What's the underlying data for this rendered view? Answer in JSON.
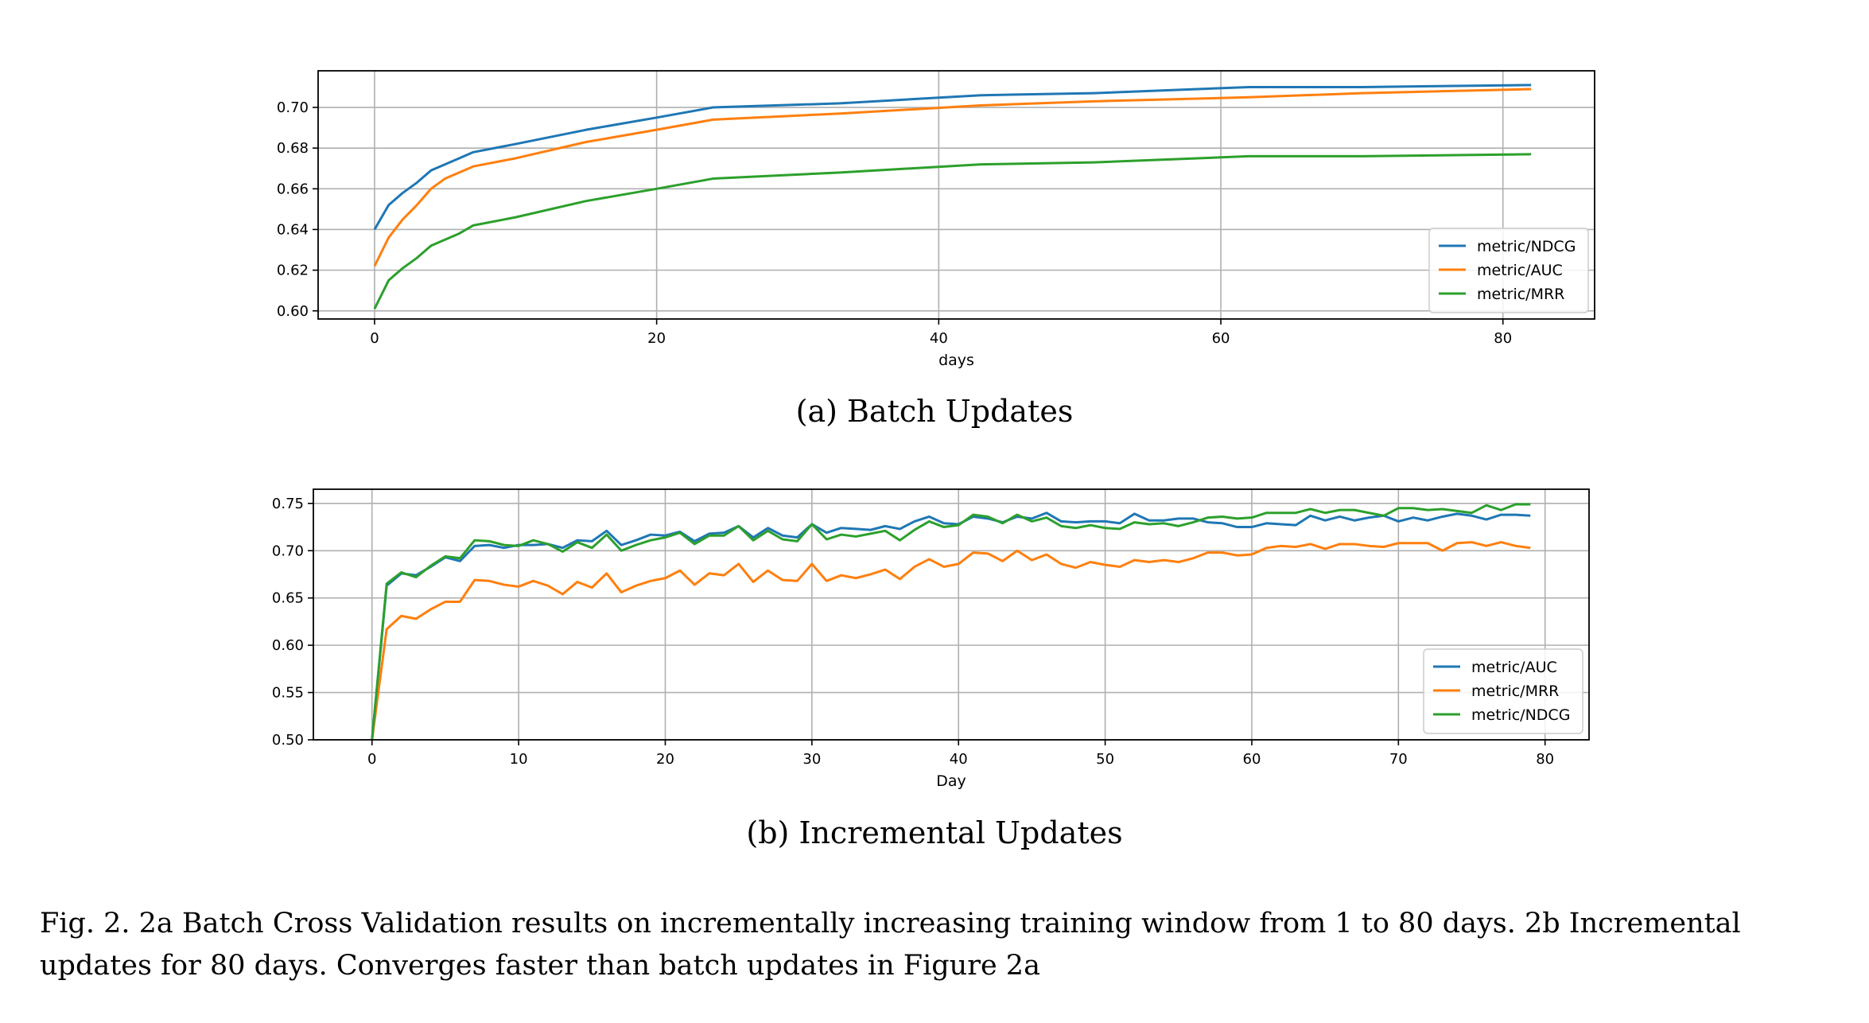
{
  "chart_data": [
    {
      "type": "line",
      "caption": "(a) Batch Updates",
      "xlabel": "days",
      "ylabel": "",
      "xlim": [
        -4,
        86.5
      ],
      "ylim": [
        0.596,
        0.718
      ],
      "xticks": [
        0,
        20,
        40,
        60,
        80
      ],
      "yticks": [
        0.6,
        0.62,
        0.64,
        0.66,
        0.68,
        0.7
      ],
      "ytick_labels": [
        "0.60",
        "0.62",
        "0.64",
        "0.66",
        "0.68",
        "0.70"
      ],
      "grid": true,
      "legend_position": "lower right",
      "x": [
        0,
        1,
        2,
        3,
        4,
        5,
        6,
        7,
        10,
        15,
        20,
        24,
        33,
        43,
        51,
        62,
        70,
        82
      ],
      "series": [
        {
          "name": "metric/NDCG",
          "color": "#1f77b4",
          "values": [
            0.64,
            0.652,
            0.658,
            0.663,
            0.669,
            0.672,
            0.675,
            0.678,
            0.682,
            0.689,
            0.695,
            0.7,
            0.702,
            0.706,
            0.707,
            0.71,
            0.71,
            0.711
          ]
        },
        {
          "name": "metric/AUC",
          "color": "#ff7f0e",
          "values": [
            0.622,
            0.636,
            0.645,
            0.652,
            0.66,
            0.665,
            0.668,
            0.671,
            0.675,
            0.683,
            0.689,
            0.694,
            0.697,
            0.701,
            0.703,
            0.705,
            0.707,
            0.709
          ]
        },
        {
          "name": "metric/MRR",
          "color": "#2ca02c",
          "values": [
            0.601,
            0.615,
            0.621,
            0.626,
            0.632,
            0.635,
            0.638,
            0.642,
            0.646,
            0.654,
            0.66,
            0.665,
            0.668,
            0.672,
            0.673,
            0.676,
            0.676,
            0.677
          ]
        }
      ]
    },
    {
      "type": "line",
      "caption": "(b) Incremental Updates",
      "xlabel": "Day",
      "ylabel": "",
      "xlim": [
        -4,
        83
      ],
      "ylim": [
        0.5,
        0.765
      ],
      "xticks": [
        0,
        10,
        20,
        30,
        40,
        50,
        60,
        70,
        80
      ],
      "yticks": [
        0.5,
        0.55,
        0.6,
        0.65,
        0.7,
        0.75
      ],
      "ytick_labels": [
        "0.50",
        "0.55",
        "0.60",
        "0.65",
        "0.70",
        "0.75"
      ],
      "grid": true,
      "legend_position": "lower right",
      "x": [
        0,
        1,
        2,
        3,
        4,
        5,
        6,
        7,
        8,
        9,
        10,
        11,
        12,
        13,
        14,
        15,
        16,
        17,
        18,
        19,
        20,
        21,
        22,
        23,
        24,
        25,
        26,
        27,
        28,
        29,
        30,
        31,
        32,
        33,
        34,
        35,
        36,
        37,
        38,
        39,
        40,
        41,
        42,
        43,
        44,
        45,
        46,
        47,
        48,
        49,
        50,
        51,
        52,
        53,
        54,
        55,
        56,
        57,
        58,
        59,
        60,
        61,
        62,
        63,
        64,
        65,
        66,
        67,
        68,
        69,
        70,
        71,
        72,
        73,
        74,
        75,
        76,
        77,
        78,
        79
      ],
      "series": [
        {
          "name": "metric/AUC",
          "color": "#1f77b4",
          "values": [
            0.5,
            0.663,
            0.676,
            0.674,
            0.683,
            0.693,
            0.689,
            0.705,
            0.706,
            0.703,
            0.706,
            0.706,
            0.707,
            0.703,
            0.711,
            0.71,
            0.721,
            0.706,
            0.711,
            0.717,
            0.716,
            0.72,
            0.71,
            0.718,
            0.719,
            0.726,
            0.714,
            0.724,
            0.716,
            0.714,
            0.728,
            0.719,
            0.724,
            0.723,
            0.722,
            0.726,
            0.723,
            0.731,
            0.736,
            0.729,
            0.728,
            0.736,
            0.734,
            0.73,
            0.736,
            0.734,
            0.74,
            0.731,
            0.73,
            0.731,
            0.731,
            0.729,
            0.739,
            0.732,
            0.732,
            0.734,
            0.734,
            0.73,
            0.729,
            0.725,
            0.725,
            0.729,
            0.728,
            0.727,
            0.737,
            0.732,
            0.736,
            0.732,
            0.735,
            0.737,
            0.731,
            0.735,
            0.732,
            0.736,
            0.739,
            0.737,
            0.733,
            0.738,
            0.738,
            0.737
          ]
        },
        {
          "name": "metric/MRR",
          "color": "#ff7f0e",
          "values": [
            0.5,
            0.617,
            0.631,
            0.628,
            0.638,
            0.646,
            0.646,
            0.669,
            0.668,
            0.664,
            0.662,
            0.668,
            0.663,
            0.654,
            0.667,
            0.661,
            0.676,
            0.656,
            0.663,
            0.668,
            0.671,
            0.679,
            0.664,
            0.676,
            0.674,
            0.686,
            0.667,
            0.679,
            0.669,
            0.668,
            0.686,
            0.668,
            0.674,
            0.671,
            0.675,
            0.68,
            0.67,
            0.683,
            0.691,
            0.683,
            0.686,
            0.698,
            0.697,
            0.689,
            0.7,
            0.69,
            0.696,
            0.686,
            0.682,
            0.688,
            0.685,
            0.683,
            0.69,
            0.688,
            0.69,
            0.688,
            0.692,
            0.698,
            0.698,
            0.695,
            0.696,
            0.703,
            0.705,
            0.704,
            0.707,
            0.702,
            0.707,
            0.707,
            0.705,
            0.704,
            0.708,
            0.708,
            0.708,
            0.7,
            0.708,
            0.709,
            0.705,
            0.709,
            0.705,
            0.703
          ]
        },
        {
          "name": "metric/NDCG",
          "color": "#2ca02c",
          "values": [
            0.5,
            0.665,
            0.677,
            0.672,
            0.684,
            0.694,
            0.692,
            0.711,
            0.71,
            0.706,
            0.705,
            0.711,
            0.707,
            0.699,
            0.709,
            0.703,
            0.717,
            0.7,
            0.706,
            0.711,
            0.714,
            0.719,
            0.707,
            0.716,
            0.716,
            0.726,
            0.711,
            0.721,
            0.712,
            0.71,
            0.728,
            0.712,
            0.717,
            0.715,
            0.718,
            0.721,
            0.711,
            0.722,
            0.731,
            0.725,
            0.727,
            0.738,
            0.736,
            0.729,
            0.738,
            0.731,
            0.735,
            0.726,
            0.724,
            0.727,
            0.724,
            0.723,
            0.73,
            0.728,
            0.729,
            0.726,
            0.73,
            0.735,
            0.736,
            0.734,
            0.735,
            0.74,
            0.74,
            0.74,
            0.744,
            0.74,
            0.743,
            0.743,
            0.74,
            0.737,
            0.745,
            0.745,
            0.743,
            0.744,
            0.742,
            0.74,
            0.748,
            0.743,
            0.749,
            0.749
          ]
        }
      ]
    }
  ],
  "figure_caption": "Fig. 2.  2a Batch Cross Validation results on incrementally increasing training window from 1 to 80 days. 2b Incremental updates for 80 days. Converges faster than batch updates in Figure 2a"
}
